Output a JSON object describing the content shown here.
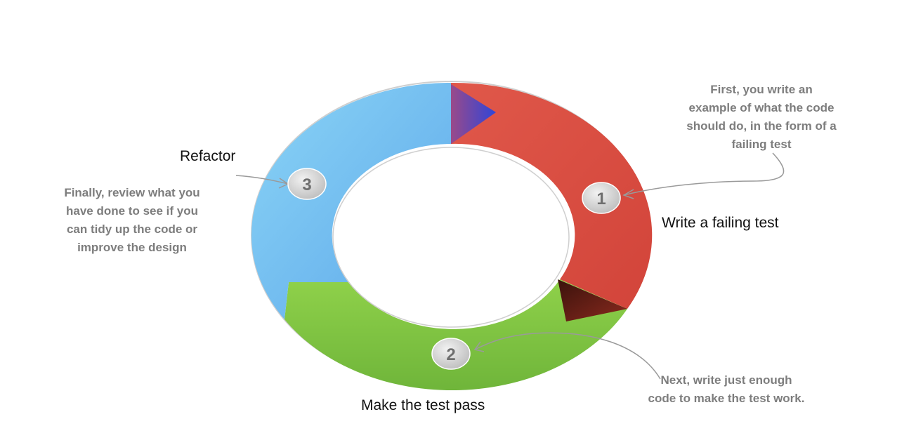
{
  "cycle": {
    "steps": [
      {
        "number": "1",
        "title": "Write a failing test",
        "description": [
          "First, you write an",
          "example of what the code",
          "should do, in the form of a",
          "failing test"
        ],
        "color": "#d94a3d"
      },
      {
        "number": "2",
        "title": "Make the test pass",
        "description": [
          "Next, write just enough",
          "code to make the test work."
        ],
        "color": "#7fc341"
      },
      {
        "number": "3",
        "title": "Refactor",
        "description": [
          "Finally, review what you",
          "have done to see if you",
          "can tidy up the code or",
          "improve the design"
        ],
        "color": "#6cb6ee"
      }
    ]
  },
  "colors": {
    "ring_outline": "#cfcfcf",
    "annotation_text": "#7d7d7d",
    "badge_fill": "#d9d9d9",
    "arrowhead_blue": "#3448d8",
    "arrowhead_dark_red": "#6b1a12"
  }
}
